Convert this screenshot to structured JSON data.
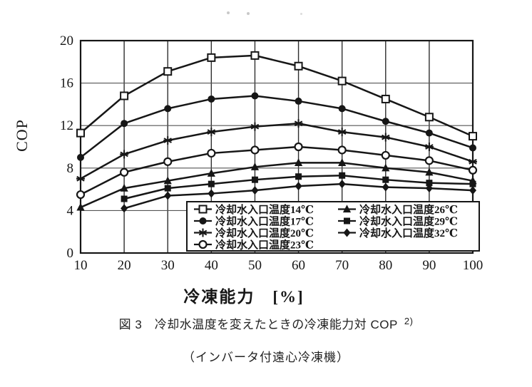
{
  "colors": {
    "ink": "#161616",
    "grid_v": "#2f2f2f",
    "grid_h": "#555555",
    "bg": "#ffffff"
  },
  "chart_data": {
    "type": "line",
    "title": "",
    "xlabel": "冷凍能力　[%]",
    "ylabel": "COP",
    "xlim": [
      10,
      100
    ],
    "ylim": [
      0,
      20
    ],
    "xticks": [
      10,
      20,
      30,
      40,
      50,
      60,
      70,
      80,
      90,
      100
    ],
    "yticks": [
      0,
      4,
      8,
      12,
      16,
      20
    ],
    "grid": true,
    "legend_position": "inside-bottom-right",
    "x": [
      10,
      20,
      30,
      40,
      50,
      60,
      70,
      80,
      90,
      100
    ],
    "series": [
      {
        "id": "t14",
        "name": "冷却水入口温度14℃",
        "marker": "open-square",
        "values": [
          11.3,
          14.8,
          17.1,
          18.4,
          18.6,
          17.6,
          16.2,
          14.5,
          12.8,
          11.0
        ]
      },
      {
        "id": "t17",
        "name": "冷却水入口温度17℃",
        "marker": "filled-circle",
        "values": [
          9.0,
          12.2,
          13.6,
          14.5,
          14.8,
          14.3,
          13.6,
          12.4,
          11.3,
          9.9
        ]
      },
      {
        "id": "t20",
        "name": "冷却水入口温度20℃",
        "marker": "asterisk",
        "values": [
          7.0,
          9.3,
          10.6,
          11.4,
          11.9,
          12.2,
          11.4,
          10.9,
          10.0,
          8.6
        ]
      },
      {
        "id": "t23",
        "name": "冷却水入口温度23℃",
        "marker": "open-circle",
        "values": [
          5.5,
          7.6,
          8.6,
          9.4,
          9.7,
          10.0,
          9.7,
          9.2,
          8.7,
          7.8
        ]
      },
      {
        "id": "t26",
        "name": "冷却水入口温度26℃",
        "marker": "filled-triangle",
        "values": [
          4.3,
          6.1,
          6.8,
          7.5,
          8.1,
          8.5,
          8.5,
          8.0,
          7.6,
          6.8
        ]
      },
      {
        "id": "t29",
        "name": "冷却水入口温度29℃",
        "marker": "filled-square",
        "values": [
          null,
          5.1,
          6.1,
          6.5,
          6.9,
          7.2,
          7.3,
          6.9,
          6.6,
          6.5
        ]
      },
      {
        "id": "t32",
        "name": "冷却水入口温度32℃",
        "marker": "filled-diamond",
        "values": [
          null,
          4.2,
          5.4,
          5.6,
          5.9,
          6.3,
          6.5,
          6.2,
          6.1,
          5.9
        ]
      }
    ]
  },
  "caption": {
    "line1": "図 3　冷却水温度を変えたときの冷凍能力対 COP",
    "ref": "2)",
    "line2": "（インバータ付遠心冷凍機）"
  }
}
